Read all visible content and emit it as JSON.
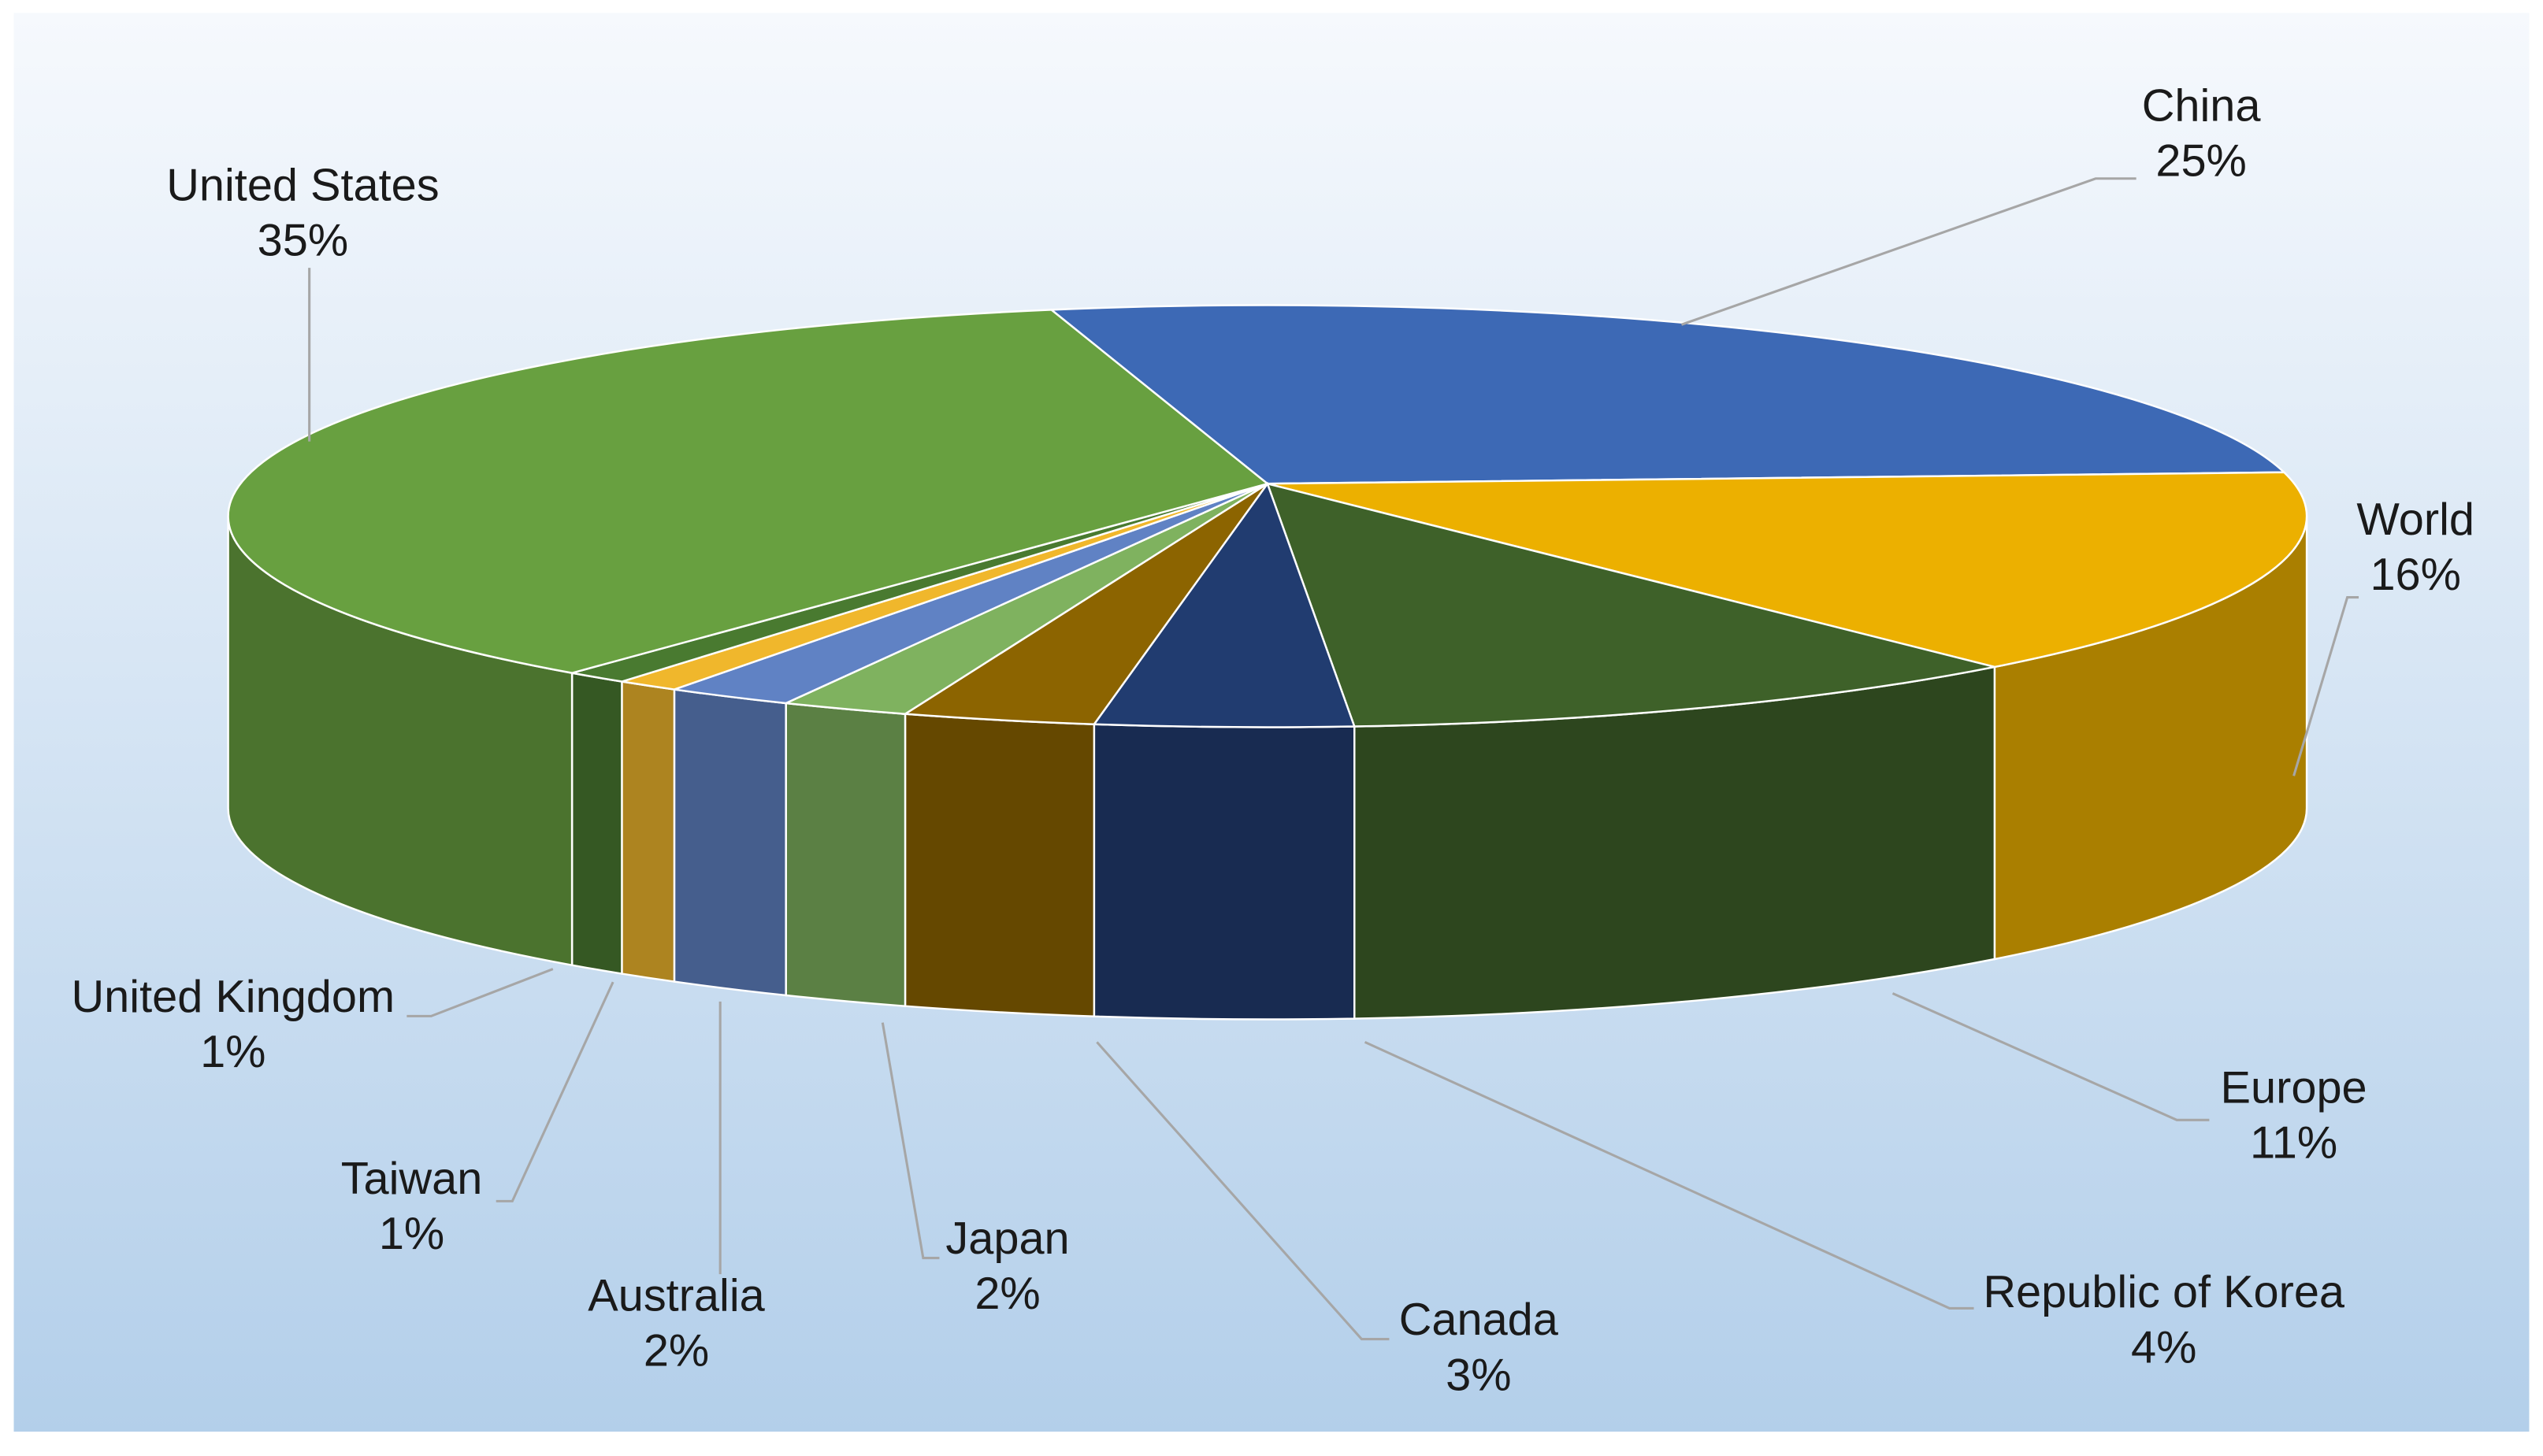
{
  "chart_data": {
    "type": "pie",
    "categories": [
      "China",
      "World",
      "Europe",
      "Republic of Korea",
      "Canada",
      "Japan",
      "Australia",
      "Taiwan",
      "United Kingdom",
      "United States"
    ],
    "values": [
      25,
      16,
      11,
      4,
      3,
      2,
      2,
      1,
      1,
      35
    ],
    "value_labels": [
      "25%",
      "16%",
      "11%",
      "4%",
      "3%",
      "2%",
      "2%",
      "1%",
      "1%",
      "35%"
    ],
    "colors": [
      "#3d69b5",
      "#ecb000",
      "#3e6129",
      "#213c70",
      "#8c6400",
      "#7fb25f",
      "#6082c4",
      "#f0b72c",
      "#497a30",
      "#68a040"
    ]
  }
}
